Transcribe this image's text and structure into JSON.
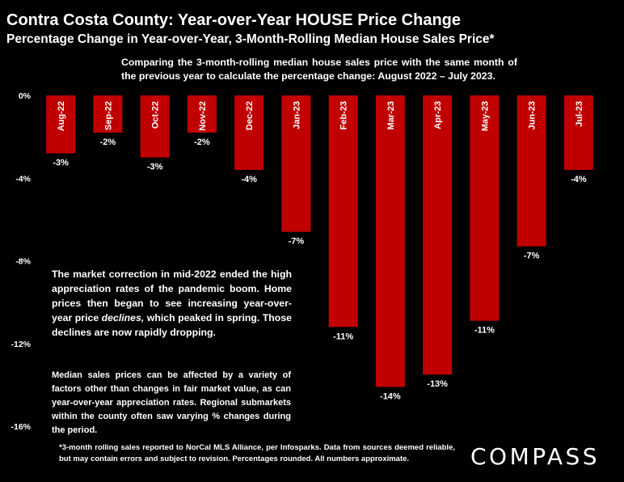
{
  "header": {
    "title": "Contra Costa County: Year-over-Year HOUSE Price Change",
    "subtitle": "Percentage Change in Year-over-Year, 3-Month-Rolling Median House Sales Price*",
    "intro": "Comparing the 3-month-rolling median house sales price with the same month of the previous year to calculate the percentage change: August 2022 – July 2023."
  },
  "notes": {
    "correction_before": "The market correction in mid-2022 ended the high appreciation rates of the pandemic boom. Home prices then began to see increasing year-over-year price ",
    "correction_emphasis": "declines,",
    "correction_after": " which peaked in spring. Those declines are now rapidly dropping.",
    "factors": "Median sales prices can be affected by a variety of factors other than changes in fair market value, as can year-over-year appreciation rates. Regional submarkets within the county often saw varying % changes during the period."
  },
  "footnote": "*3-month rolling sales reported to NorCal MLS Alliance, per Infosparks. Data from sources deemed reliable, but may contain errors and subject to revision. Percentages rounded. All numbers approximate.",
  "logo": "COMPASS",
  "colors": {
    "bar": "#c00000",
    "background": "#000000",
    "text": "#ffffff"
  },
  "chart_data": {
    "type": "bar",
    "categories": [
      "Aug-22",
      "Sep-22",
      "Oct-22",
      "Nov-22",
      "Dec-22",
      "Jan-23",
      "Feb-23",
      "Mar-23",
      "Apr-23",
      "May-23",
      "Jun-23",
      "Jul-23"
    ],
    "values": [
      -2.8,
      -1.8,
      -3.0,
      -1.8,
      -3.6,
      -6.6,
      -11.2,
      -14.1,
      -13.5,
      -10.9,
      -7.3,
      -3.6
    ],
    "data_labels": [
      "-3%",
      "-2%",
      "-3%",
      "-2%",
      "-4%",
      "-7%",
      "-11%",
      "-14%",
      "-13%",
      "-11%",
      "-7%",
      "-4%"
    ],
    "y_ticks": [
      0,
      -4,
      -8,
      -12,
      -16
    ],
    "y_tick_labels": [
      "0%",
      "-4%",
      "-8%",
      "-12%",
      "-16%"
    ],
    "ylim": [
      -16,
      0
    ],
    "grid": false
  }
}
